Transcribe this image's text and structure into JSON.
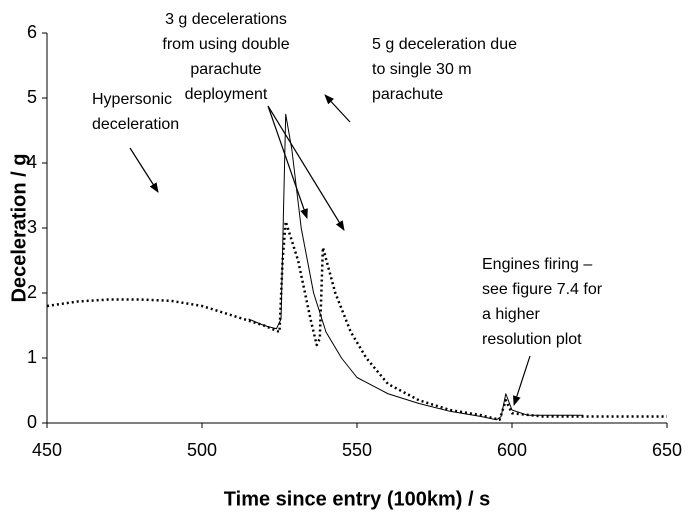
{
  "chart_data": {
    "type": "line",
    "xlabel": "Time since entry (100km) / s",
    "ylabel": "Deceleration / g",
    "xlim": [
      450,
      650
    ],
    "xticks": [
      450,
      500,
      550,
      600,
      650
    ],
    "ylim": [
      0,
      6
    ],
    "yticks": [
      0,
      1,
      2,
      3,
      4,
      5,
      6
    ],
    "grid": false,
    "series": [
      {
        "color": "#000000",
        "style": "solid",
        "x": [
          515,
          520,
          524,
          525.5,
          527,
          529,
          532,
          536,
          540,
          545,
          550,
          560,
          570,
          580,
          590,
          595,
          596.5,
          598,
          600,
          605,
          623
        ],
        "values": [
          1.6,
          1.5,
          1.45,
          1.6,
          4.75,
          4.2,
          3.0,
          2.0,
          1.4,
          1.0,
          0.7,
          0.45,
          0.3,
          0.18,
          0.1,
          0.05,
          0.1,
          0.45,
          0.2,
          0.12,
          0.12
        ]
      },
      {
        "color": "#000000",
        "style": "dotted",
        "x": [
          450,
          460,
          470,
          480,
          490,
          500,
          510,
          520,
          525,
          526,
          527,
          531,
          535,
          537,
          538,
          539,
          543,
          548,
          553,
          560,
          570,
          580,
          590,
          596,
          598,
          600,
          610,
          650
        ],
        "values": [
          1.8,
          1.87,
          1.9,
          1.9,
          1.88,
          1.8,
          1.65,
          1.5,
          1.4,
          2.5,
          3.1,
          2.5,
          1.6,
          1.2,
          1.3,
          2.7,
          2.0,
          1.4,
          1.0,
          0.6,
          0.35,
          0.2,
          0.12,
          0.05,
          0.35,
          0.15,
          0.1,
          0.1
        ]
      }
    ],
    "annotations": [
      {
        "lines": [
          "Hypersonic",
          "deceleration"
        ]
      },
      {
        "lines": [
          "3 g decelerations",
          "from using double",
          "parachute",
          "deployment"
        ]
      },
      {
        "lines": [
          "5 g deceleration due",
          "to single 30 m",
          "parachute"
        ]
      },
      {
        "lines": [
          "Engines firing –",
          "see figure 7.4 for",
          "a higher",
          "resolution plot"
        ]
      }
    ]
  }
}
